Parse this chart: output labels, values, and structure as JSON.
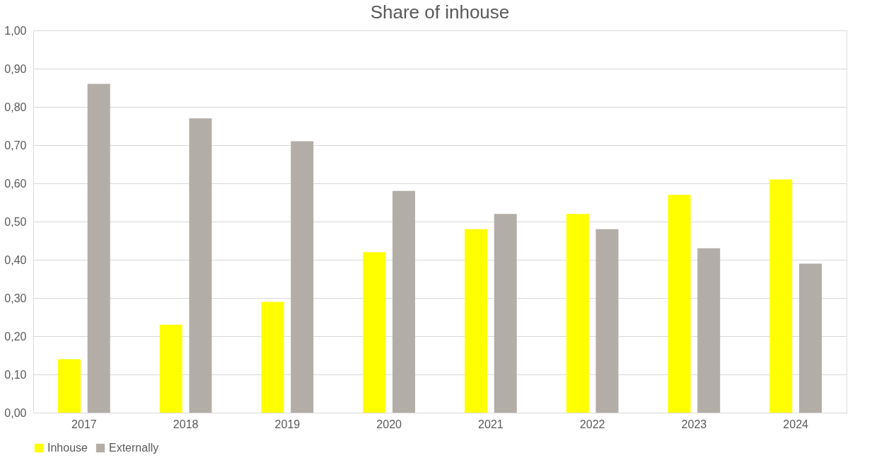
{
  "chart_data": {
    "type": "bar",
    "title": "Share of inhouse",
    "categories": [
      "2017",
      "2018",
      "2019",
      "2020",
      "2021",
      "2022",
      "2023",
      "2024"
    ],
    "series": [
      {
        "name": "Inhouse",
        "color": "#ffff00",
        "values": [
          0.14,
          0.23,
          0.29,
          0.42,
          0.48,
          0.52,
          0.57,
          0.61
        ]
      },
      {
        "name": "Externally",
        "color": "#b2ada6",
        "values": [
          0.86,
          0.77,
          0.71,
          0.58,
          0.52,
          0.48,
          0.43,
          0.39
        ]
      }
    ],
    "ylim": [
      0,
      1
    ],
    "yticks": [
      {
        "value": 0,
        "label": "0,00"
      },
      {
        "value": 0.1,
        "label": "0,10"
      },
      {
        "value": 0.2,
        "label": "0,20"
      },
      {
        "value": 0.3,
        "label": "0,30"
      },
      {
        "value": 0.4,
        "label": "0,40"
      },
      {
        "value": 0.5,
        "label": "0,50"
      },
      {
        "value": 0.6,
        "label": "0,60"
      },
      {
        "value": 0.7,
        "label": "0,70"
      },
      {
        "value": 0.8,
        "label": "0,80"
      },
      {
        "value": 0.9,
        "label": "0,90"
      },
      {
        "value": 1,
        "label": "1,00"
      }
    ],
    "grid": "y",
    "legend": "bottom"
  }
}
